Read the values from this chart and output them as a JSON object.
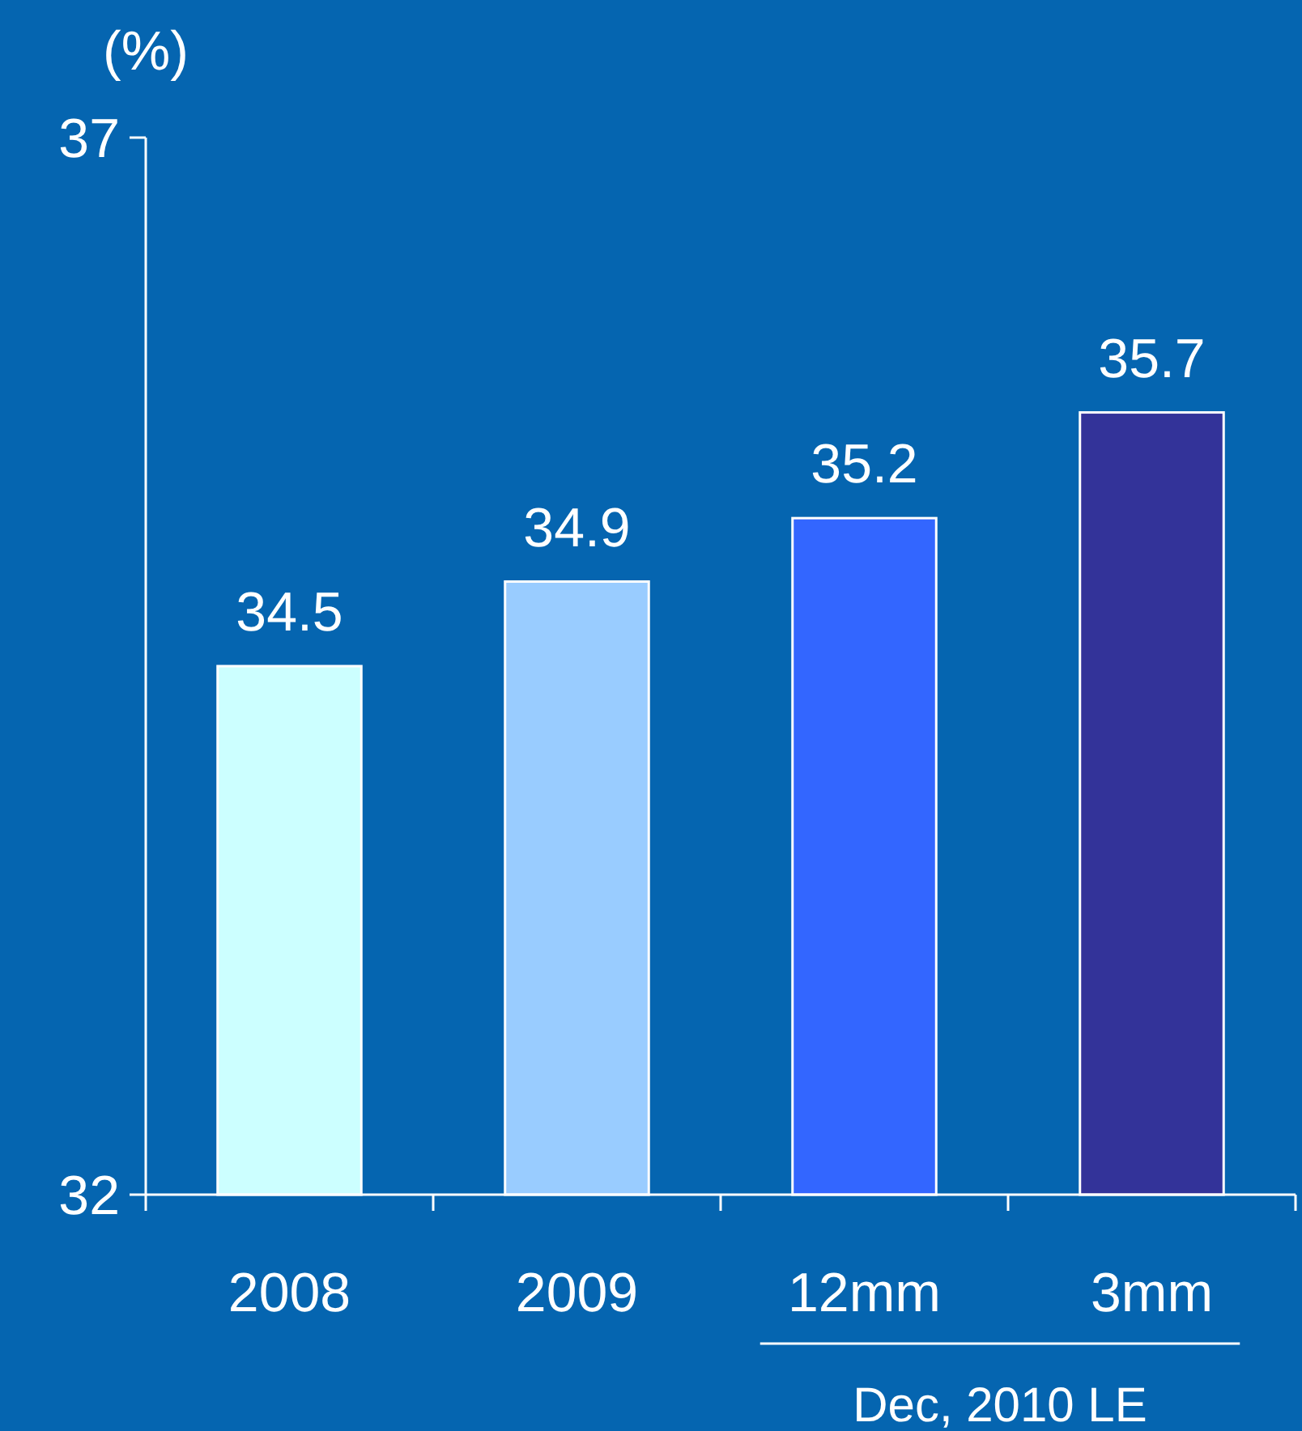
{
  "chart_data": {
    "type": "bar",
    "ylabel": "(%)",
    "categories": [
      "2008",
      "2009",
      "12mm",
      "3mm"
    ],
    "values": [
      34.5,
      34.9,
      35.2,
      35.7
    ],
    "colors": [
      "#ccffff",
      "#99ccff",
      "#3366ff",
      "#333399"
    ],
    "ylim": [
      32,
      37
    ],
    "yticks": [
      32,
      37
    ],
    "grid": false,
    "data_labels": true,
    "annotations": [
      "Dec, 2010 LE"
    ]
  }
}
